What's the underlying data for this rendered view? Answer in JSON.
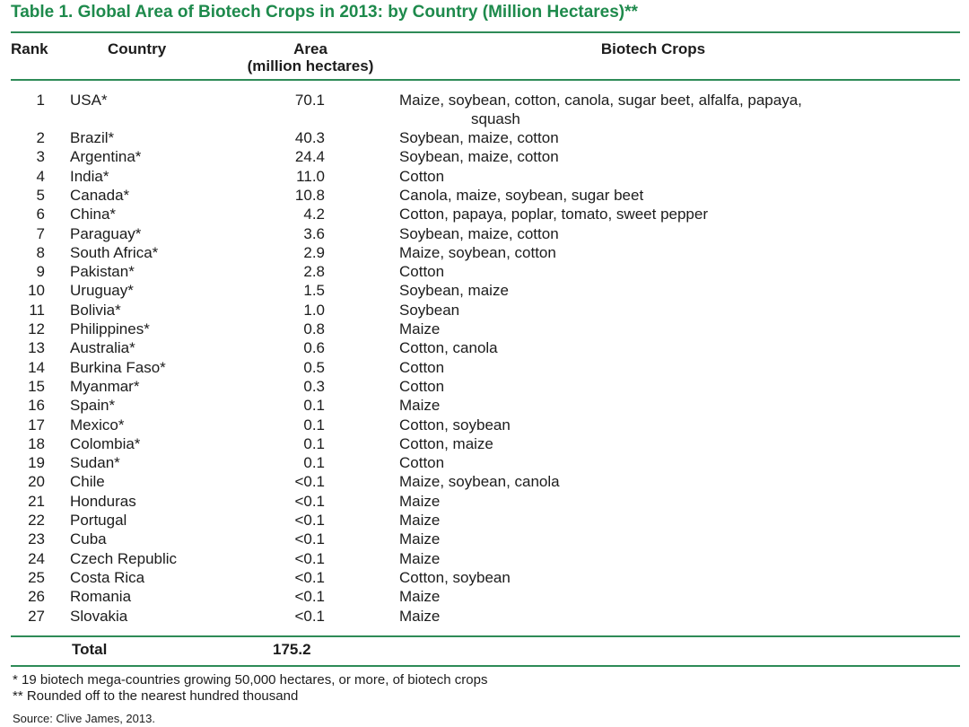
{
  "title": "Table 1.  Global Area of Biotech Crops in 2013: by Country (Million Hectares)**",
  "headers": {
    "rank": "Rank",
    "country": "Country",
    "area": "Area",
    "area_unit": "(million hectares)",
    "crops": "Biotech Crops"
  },
  "rows": [
    {
      "rank": "1",
      "country": "USA*",
      "area": "70.1",
      "crops": "Maize, soybean, cotton, canola, sugar beet, alfalfa, papaya,",
      "crops_cont": "squash"
    },
    {
      "rank": "2",
      "country": "Brazil*",
      "area": "40.3",
      "crops": "Soybean, maize, cotton"
    },
    {
      "rank": "3",
      "country": "Argentina*",
      "area": "24.4",
      "crops": "Soybean, maize, cotton"
    },
    {
      "rank": "4",
      "country": "India*",
      "area": "11.0",
      "crops": "Cotton"
    },
    {
      "rank": "5",
      "country": "Canada*",
      "area": "10.8",
      "crops": "Canola, maize, soybean, sugar beet"
    },
    {
      "rank": "6",
      "country": "China*",
      "area": "4.2",
      "crops": "Cotton, papaya, poplar, tomato, sweet pepper"
    },
    {
      "rank": "7",
      "country": "Paraguay*",
      "area": "3.6",
      "crops": "Soybean, maize, cotton"
    },
    {
      "rank": "8",
      "country": "South Africa*",
      "area": "2.9",
      "crops": "Maize, soybean, cotton"
    },
    {
      "rank": "9",
      "country": "Pakistan*",
      "area": "2.8",
      "crops": "Cotton"
    },
    {
      "rank": "10",
      "country": "Uruguay*",
      "area": "1.5",
      "crops": "Soybean, maize"
    },
    {
      "rank": "11",
      "country": "Bolivia*",
      "area": "1.0",
      "crops": "Soybean"
    },
    {
      "rank": "12",
      "country": "Philippines*",
      "area": "0.8",
      "crops": "Maize"
    },
    {
      "rank": "13",
      "country": "Australia*",
      "area": "0.6",
      "crops": "Cotton, canola"
    },
    {
      "rank": "14",
      "country": "Burkina Faso*",
      "area": "0.5",
      "crops": "Cotton"
    },
    {
      "rank": "15",
      "country": "Myanmar*",
      "area": "0.3",
      "crops": "Cotton"
    },
    {
      "rank": "16",
      "country": "Spain*",
      "area": "0.1",
      "crops": "Maize"
    },
    {
      "rank": "17",
      "country": "Mexico*",
      "area": "0.1",
      "crops": "Cotton, soybean"
    },
    {
      "rank": "18",
      "country": "Colombia*",
      "area": "0.1",
      "crops": "Cotton, maize"
    },
    {
      "rank": "19",
      "country": "Sudan*",
      "area": "0.1",
      "crops": "Cotton"
    },
    {
      "rank": "20",
      "country": "Chile",
      "area": "<0.1",
      "crops": "Maize, soybean, canola"
    },
    {
      "rank": "21",
      "country": "Honduras",
      "area": "<0.1",
      "crops": "Maize"
    },
    {
      "rank": "22",
      "country": "Portugal",
      "area": "<0.1",
      "crops": "Maize"
    },
    {
      "rank": "23",
      "country": "Cuba",
      "area": "<0.1",
      "crops": "Maize"
    },
    {
      "rank": "24",
      "country": "Czech Republic",
      "area": "<0.1",
      "crops": "Maize"
    },
    {
      "rank": "25",
      "country": "Costa Rica",
      "area": "<0.1",
      "crops": "Cotton, soybean"
    },
    {
      "rank": "26",
      "country": "Romania",
      "area": "<0.1",
      "crops": "Maize"
    },
    {
      "rank": "27",
      "country": "Slovakia",
      "area": "<0.1",
      "crops": "Maize"
    }
  ],
  "total": {
    "label": "Total",
    "area": "175.2"
  },
  "footnotes": [
    "* 19 biotech mega-countries growing 50,000 hectares, or more, of biotech crops",
    "** Rounded off to the nearest hundred thousand"
  ],
  "source": "Source: Clive James, 2013.",
  "colors": {
    "accent": "#1e8a4c",
    "rule": "#2e8b57"
  }
}
